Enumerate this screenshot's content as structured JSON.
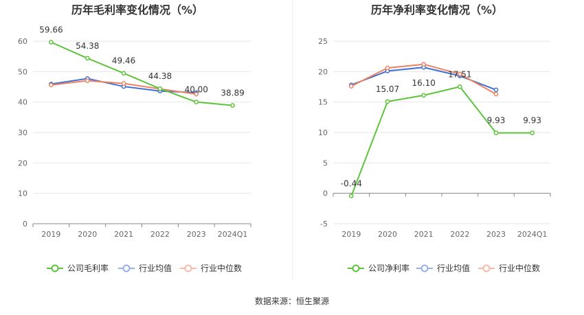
{
  "source_label": "数据来源：恒生聚源",
  "chart_data": [
    {
      "type": "line",
      "title": "历年毛利率变化情况（%）",
      "categories": [
        "2019",
        "2020",
        "2021",
        "2022",
        "2023",
        "2024Q1"
      ],
      "ylim": [
        0,
        60
      ],
      "yticks": [
        0,
        10,
        20,
        30,
        40,
        50,
        60
      ],
      "grid": true,
      "legend_position": "bottom",
      "series": [
        {
          "name": "公司毛利率",
          "color": "#5bc43a",
          "values": [
            59.66,
            54.38,
            49.46,
            44.38,
            40.0,
            38.89
          ],
          "labels": [
            "59.66",
            "54.38",
            "49.46",
            "44.38",
            "40.00",
            "38.89"
          ]
        },
        {
          "name": "行业均值",
          "color": "#3f6fd3",
          "values": [
            45.9,
            47.7,
            45.1,
            43.6,
            43.1,
            null
          ]
        },
        {
          "name": "行业中位数",
          "color": "#ee8262",
          "values": [
            45.6,
            47.0,
            46.1,
            44.3,
            42.6,
            null
          ]
        }
      ]
    },
    {
      "type": "line",
      "title": "历年净利率变化情况（%）",
      "categories": [
        "2019",
        "2020",
        "2021",
        "2022",
        "2023",
        "2024Q1"
      ],
      "ylim": [
        -5,
        25
      ],
      "yticks": [
        -5,
        0,
        5,
        10,
        15,
        20,
        25
      ],
      "grid": true,
      "legend_position": "bottom",
      "series": [
        {
          "name": "公司净利率",
          "color": "#5bc43a",
          "values": [
            -0.44,
            15.07,
            16.1,
            17.51,
            9.93,
            9.93
          ],
          "labels": [
            "-0.44",
            "15.07",
            "16.10",
            "17.51",
            "9.93",
            "9.93"
          ]
        },
        {
          "name": "行业均值",
          "color": "#3f6fd3",
          "values": [
            17.8,
            20.1,
            20.7,
            19.3,
            17.0,
            null
          ]
        },
        {
          "name": "行业中位数",
          "color": "#ee8262",
          "values": [
            17.6,
            20.6,
            21.2,
            19.6,
            16.3,
            null
          ]
        }
      ]
    }
  ]
}
